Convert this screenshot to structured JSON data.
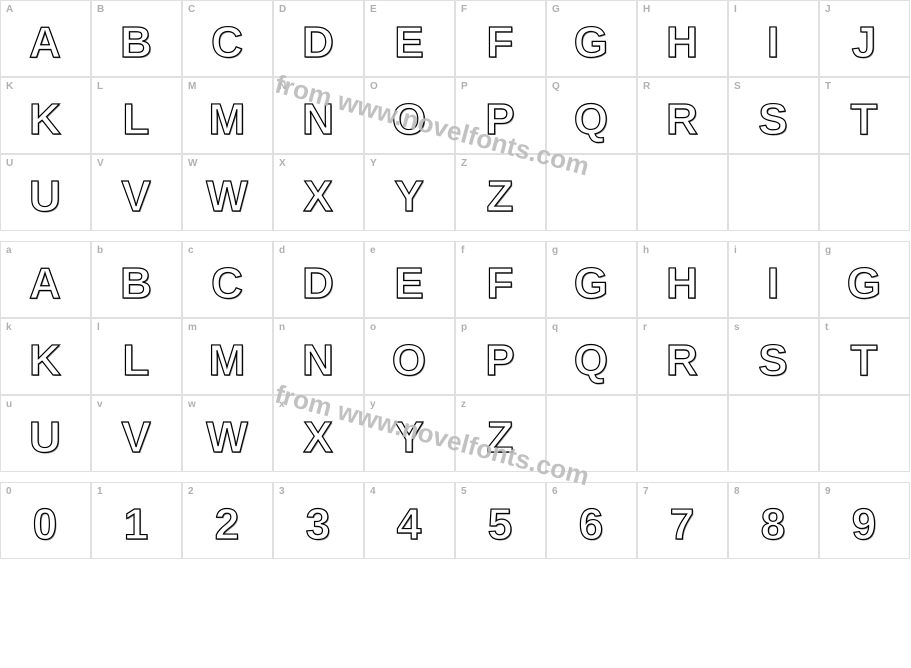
{
  "watermark_text": "from www.novelfonts.com",
  "rows": [
    {
      "type": "glyphs",
      "cells": [
        {
          "key": "A",
          "glyph": "A"
        },
        {
          "key": "B",
          "glyph": "B"
        },
        {
          "key": "C",
          "glyph": "C"
        },
        {
          "key": "D",
          "glyph": "D"
        },
        {
          "key": "E",
          "glyph": "E"
        },
        {
          "key": "F",
          "glyph": "F"
        },
        {
          "key": "G",
          "glyph": "G"
        },
        {
          "key": "H",
          "glyph": "H"
        },
        {
          "key": "I",
          "glyph": "I"
        },
        {
          "key": "J",
          "glyph": "J"
        }
      ]
    },
    {
      "type": "glyphs",
      "cells": [
        {
          "key": "K",
          "glyph": "K"
        },
        {
          "key": "L",
          "glyph": "L"
        },
        {
          "key": "M",
          "glyph": "M"
        },
        {
          "key": "N",
          "glyph": "N"
        },
        {
          "key": "O",
          "glyph": "O"
        },
        {
          "key": "P",
          "glyph": "P"
        },
        {
          "key": "Q",
          "glyph": "Q"
        },
        {
          "key": "R",
          "glyph": "R"
        },
        {
          "key": "S",
          "glyph": "S"
        },
        {
          "key": "T",
          "glyph": "T"
        }
      ]
    },
    {
      "type": "glyphs",
      "cells": [
        {
          "key": "U",
          "glyph": "U"
        },
        {
          "key": "V",
          "glyph": "V"
        },
        {
          "key": "W",
          "glyph": "W"
        },
        {
          "key": "X",
          "glyph": "X"
        },
        {
          "key": "Y",
          "glyph": "Y"
        },
        {
          "key": "Z",
          "glyph": "Z"
        },
        {
          "key": "",
          "glyph": ""
        },
        {
          "key": "",
          "glyph": ""
        },
        {
          "key": "",
          "glyph": ""
        },
        {
          "key": "",
          "glyph": ""
        }
      ]
    },
    {
      "type": "spacer"
    },
    {
      "type": "glyphs",
      "cells": [
        {
          "key": "a",
          "glyph": "A"
        },
        {
          "key": "b",
          "glyph": "B"
        },
        {
          "key": "c",
          "glyph": "C"
        },
        {
          "key": "d",
          "glyph": "D"
        },
        {
          "key": "e",
          "glyph": "E"
        },
        {
          "key": "f",
          "glyph": "F"
        },
        {
          "key": "g",
          "glyph": "G"
        },
        {
          "key": "h",
          "glyph": "H"
        },
        {
          "key": "i",
          "glyph": "I"
        },
        {
          "key": "g",
          "glyph": "G"
        }
      ]
    },
    {
      "type": "glyphs",
      "cells": [
        {
          "key": "k",
          "glyph": "K"
        },
        {
          "key": "l",
          "glyph": "L"
        },
        {
          "key": "m",
          "glyph": "M"
        },
        {
          "key": "n",
          "glyph": "N"
        },
        {
          "key": "o",
          "glyph": "O"
        },
        {
          "key": "p",
          "glyph": "P"
        },
        {
          "key": "q",
          "glyph": "Q"
        },
        {
          "key": "r",
          "glyph": "R"
        },
        {
          "key": "s",
          "glyph": "S"
        },
        {
          "key": "t",
          "glyph": "T"
        }
      ]
    },
    {
      "type": "glyphs",
      "cells": [
        {
          "key": "u",
          "glyph": "U"
        },
        {
          "key": "v",
          "glyph": "V"
        },
        {
          "key": "w",
          "glyph": "W"
        },
        {
          "key": "x",
          "glyph": "X"
        },
        {
          "key": "y",
          "glyph": "Y"
        },
        {
          "key": "z",
          "glyph": "Z"
        },
        {
          "key": "",
          "glyph": ""
        },
        {
          "key": "",
          "glyph": ""
        },
        {
          "key": "",
          "glyph": ""
        },
        {
          "key": "",
          "glyph": ""
        }
      ]
    },
    {
      "type": "spacer"
    },
    {
      "type": "glyphs",
      "cells": [
        {
          "key": "0",
          "glyph": "0"
        },
        {
          "key": "1",
          "glyph": "1"
        },
        {
          "key": "2",
          "glyph": "2"
        },
        {
          "key": "3",
          "glyph": "3"
        },
        {
          "key": "4",
          "glyph": "4"
        },
        {
          "key": "5",
          "glyph": "5"
        },
        {
          "key": "6",
          "glyph": "6"
        },
        {
          "key": "7",
          "glyph": "7"
        },
        {
          "key": "8",
          "glyph": "8"
        },
        {
          "key": "9",
          "glyph": "9"
        }
      ]
    }
  ]
}
